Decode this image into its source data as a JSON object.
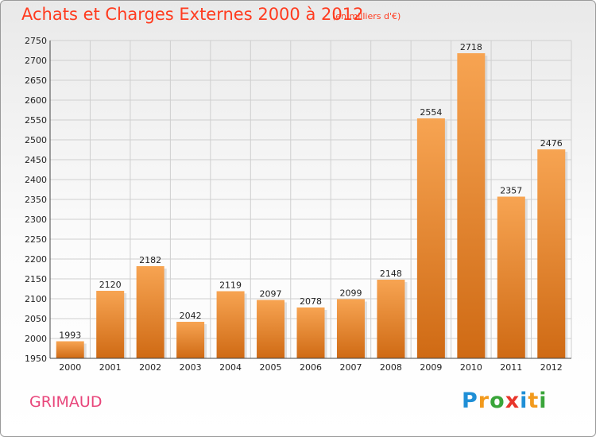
{
  "header": {
    "title": "Achats et Charges Externes 2000 à 2012",
    "subtitle": "(en milliers d'€)"
  },
  "footer": {
    "city": "GRIMAUD",
    "brand": [
      "P",
      "r",
      "o",
      "x",
      "i",
      "t",
      "i"
    ],
    "brand_colors": [
      "#1f8fd6",
      "#f29a1d",
      "#3aa53a",
      "#e8352b",
      "#1f8fd6",
      "#f29a1d",
      "#3aa53a"
    ]
  },
  "chart_data": {
    "type": "bar",
    "categories": [
      "2000",
      "2001",
      "2002",
      "2003",
      "2004",
      "2005",
      "2006",
      "2007",
      "2008",
      "2009",
      "2010",
      "2011",
      "2012"
    ],
    "values": [
      1993,
      2120,
      2182,
      2042,
      2119,
      2097,
      2078,
      2099,
      2148,
      2554,
      2718,
      2357,
      2476
    ],
    "ylim": [
      1950,
      2750
    ],
    "yticks": [
      1950,
      2000,
      2050,
      2100,
      2150,
      2200,
      2250,
      2300,
      2350,
      2400,
      2450,
      2500,
      2550,
      2600,
      2650,
      2700,
      2750
    ],
    "grid": true,
    "bar_color_top": "#f7a452",
    "bar_color_bottom": "#cf6a14"
  }
}
